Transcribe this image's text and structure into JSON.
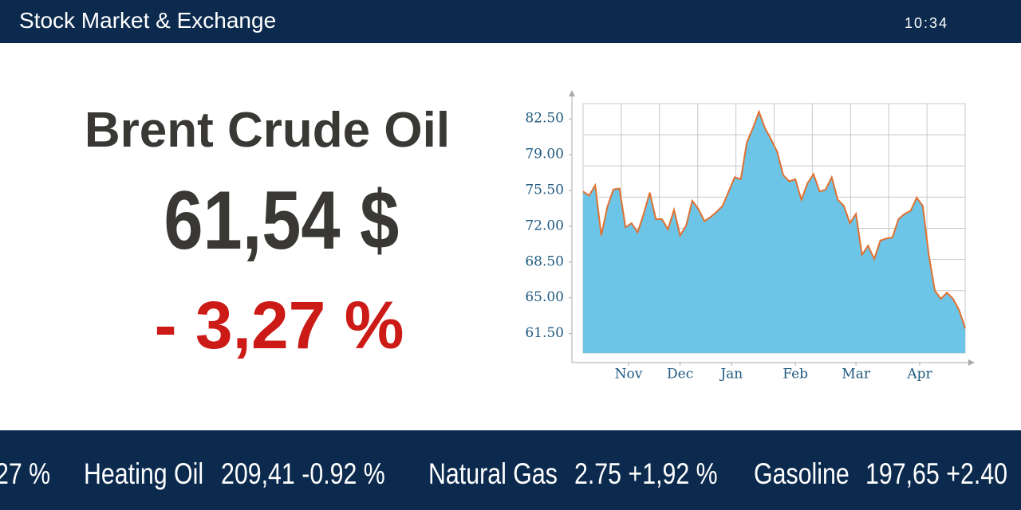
{
  "header": {
    "title": "Stock Market & Exchange",
    "time": "10:34"
  },
  "quote": {
    "name": "Brent Crude Oil",
    "price": "61,54 $",
    "change": "- 3,27 %"
  },
  "chart_data": {
    "type": "area",
    "values": [
      75.4,
      75.0,
      76.0,
      71.1,
      73.9,
      75.6,
      75.7,
      71.9,
      72.3,
      71.4,
      73.2,
      75.3,
      72.7,
      72.7,
      71.7,
      73.6,
      71.1,
      72.1,
      74.5,
      73.7,
      72.5,
      72.9,
      73.4,
      74.0,
      75.4,
      76.8,
      76.6,
      80.2,
      81.6,
      83.2,
      81.6,
      80.5,
      79.3,
      77.0,
      76.4,
      76.6,
      74.6,
      76.2,
      77.1,
      75.4,
      75.6,
      76.8,
      74.6,
      74.0,
      72.3,
      73.2,
      69.2,
      70.1,
      68.8,
      70.6,
      70.8,
      70.9,
      72.7,
      73.2,
      73.5,
      74.8,
      74.0,
      69.2,
      65.7,
      64.9,
      65.5,
      64.9,
      63.8,
      62.0
    ],
    "xlim": [
      0,
      63
    ],
    "xticks": [
      {
        "value": 7.5,
        "label": "Nov"
      },
      {
        "value": 16,
        "label": "Dec"
      },
      {
        "value": 24.5,
        "label": "Jan"
      },
      {
        "value": 35,
        "label": "Feb"
      },
      {
        "value": 45,
        "label": "Mar"
      },
      {
        "value": 55.5,
        "label": "Apr"
      }
    ],
    "ylim": [
      59.6,
      84
    ],
    "yticks": [
      {
        "value": 61.5,
        "label": "61.50"
      },
      {
        "value": 65,
        "label": "65.00"
      },
      {
        "value": 68.5,
        "label": "68.50"
      },
      {
        "value": 72,
        "label": "72.00"
      },
      {
        "value": 75.5,
        "label": "75.50"
      },
      {
        "value": 79,
        "label": "79.00"
      },
      {
        "value": 82.5,
        "label": "82.50"
      }
    ],
    "color": "#6cc5e6",
    "line_color": "#e07030"
  },
  "ticker": {
    "partial_start": "27 %",
    "items": [
      {
        "name": "Heating Oil",
        "value": "209,41 -0.92 %"
      },
      {
        "name": "Natural Gas",
        "value": "2.75 +1,92 %"
      },
      {
        "name": "Gasoline",
        "value": "197,65 +2.40"
      }
    ]
  }
}
